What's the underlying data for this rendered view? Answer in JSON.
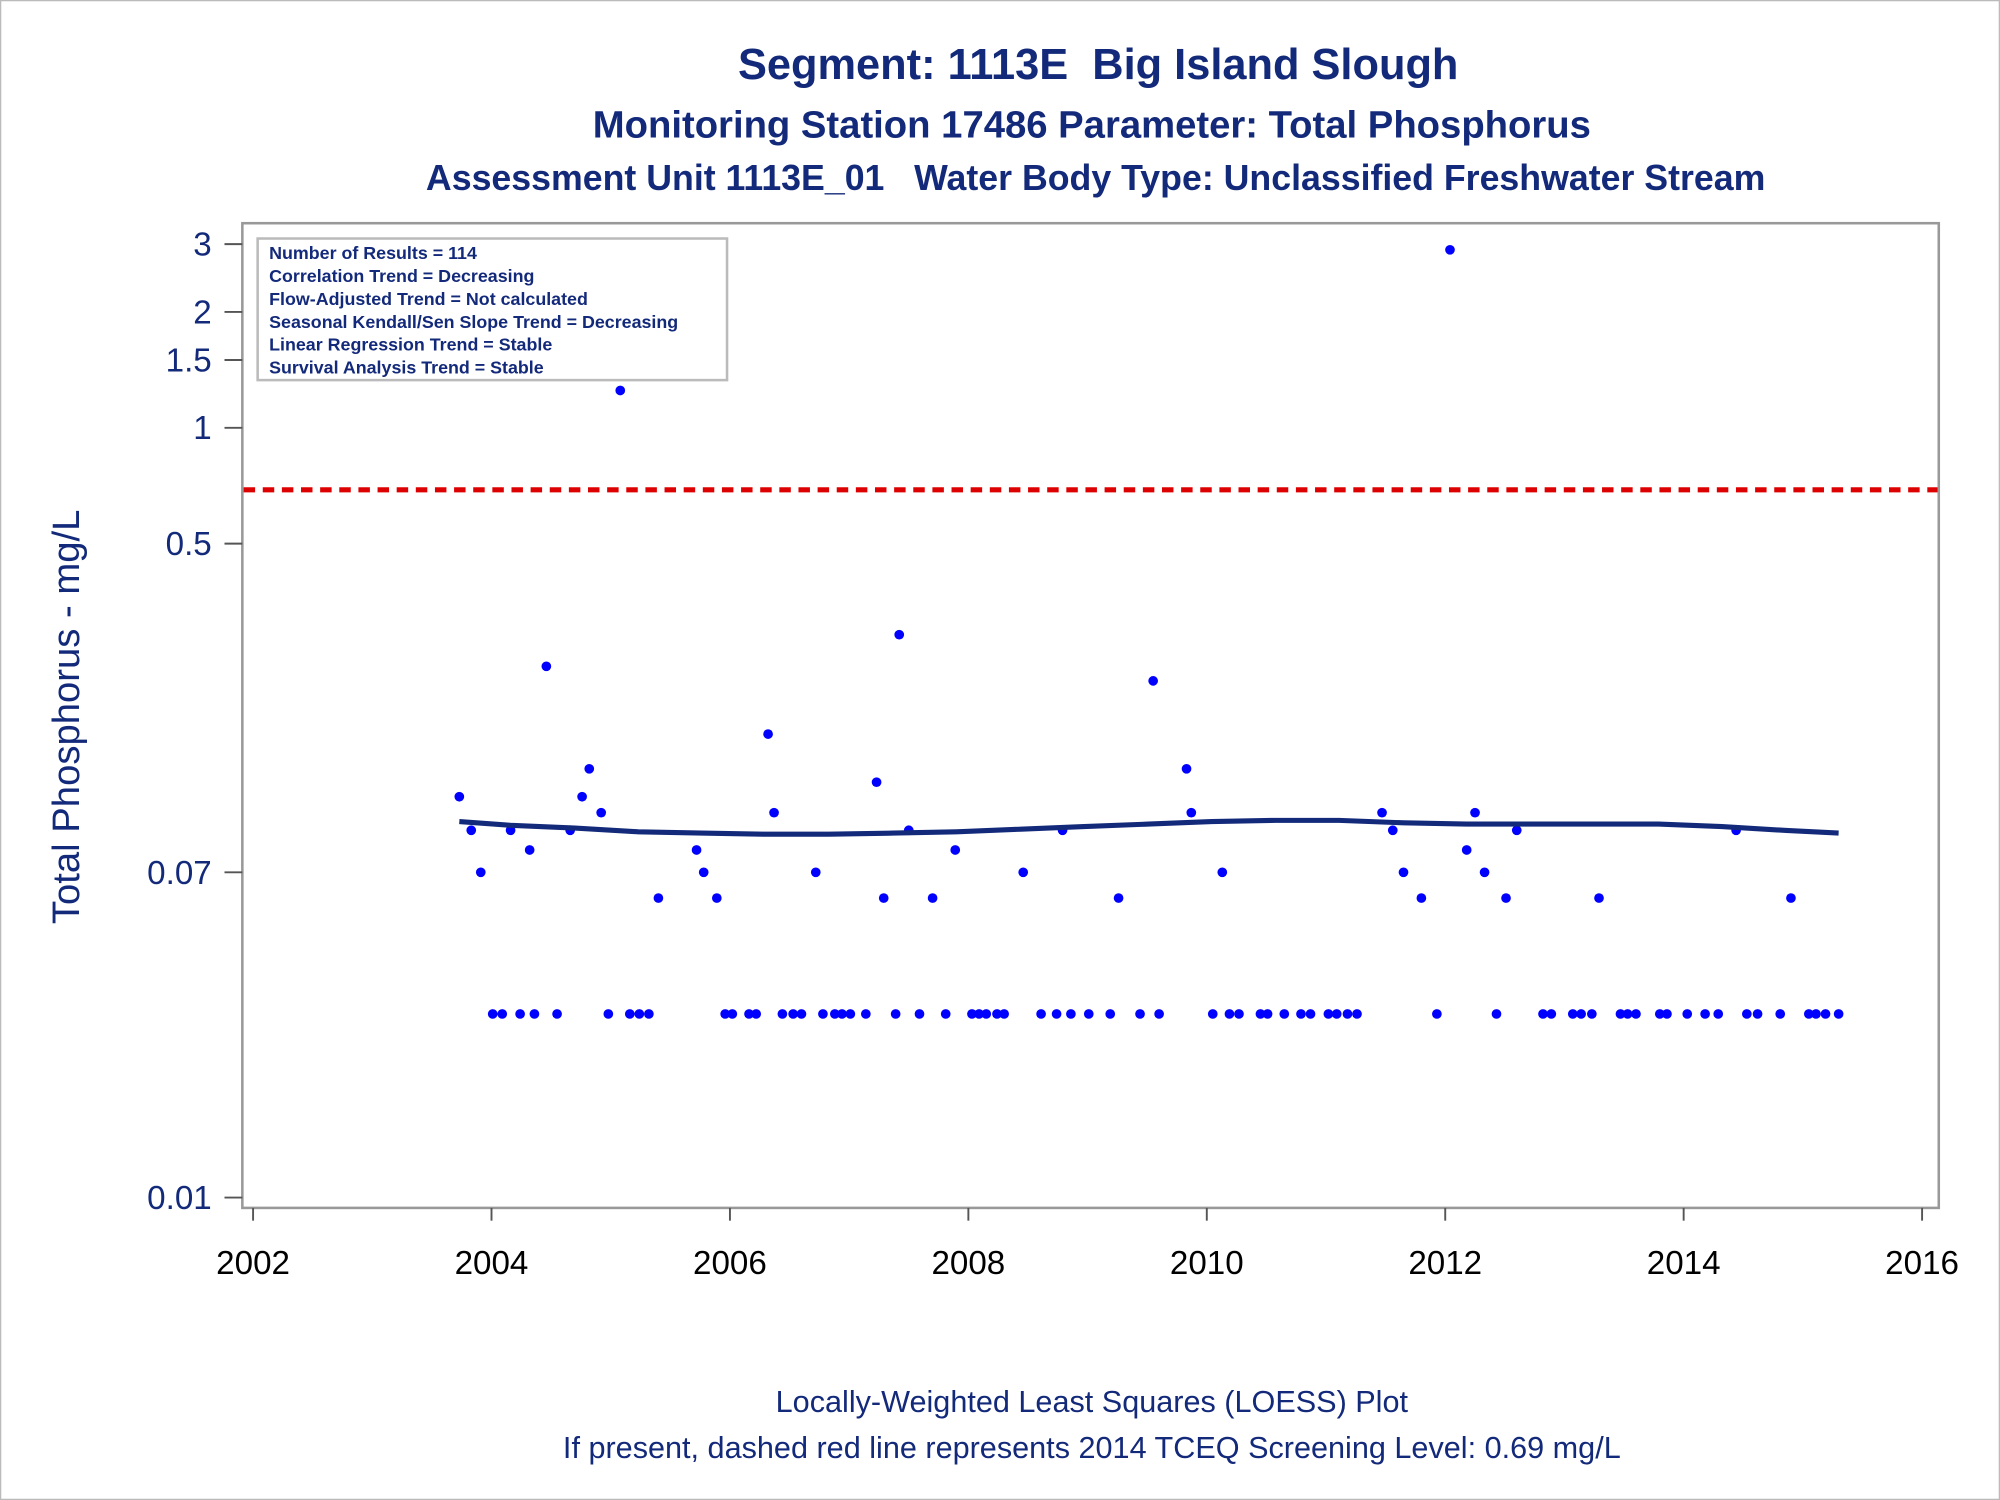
{
  "chart_data": {
    "type": "scatter",
    "title": "Segment: 1113E  Big Island Slough",
    "subtitle": "Monitoring Station 17486 Parameter: Total Phosphorus",
    "subtitle2": "Assessment Unit 1113E_01   Water Body Type: Unclassified Freshwater Stream",
    "y_label": "Total Phosphorus - mg/L",
    "footnotes": [
      "Locally-Weighted Least Squares (LOESS) Plot",
      "If present, dashed red line represents 2014 TCEQ Screening Level: 0.69 mg/L"
    ],
    "info_box": [
      "Number of Results = 114",
      "Correlation Trend = Decreasing",
      "Flow-Adjusted Trend = Not calculated",
      "Seasonal Kendall/Sen Slope Trend = Decreasing",
      "Linear Regression Trend = Stable",
      "Survival Analysis Trend = Stable"
    ],
    "y_log": true,
    "xlim": [
      2001.91,
      2016.14
    ],
    "xticks": [
      2002,
      2004,
      2006,
      2008,
      2010,
      2012,
      2014,
      2016
    ],
    "ylim": [
      0.0094,
      3.4
    ],
    "yticks": [
      0.01,
      0.07,
      0.5,
      1,
      1.5,
      2,
      3
    ],
    "reference_line": {
      "value": 0.69,
      "color": "#dd0000"
    },
    "series": [
      {
        "type": "scatter",
        "color": "#0000ff",
        "x": [
          2003.73,
          2003.83,
          2003.91,
          2004.16,
          2004.32,
          2004.46,
          2004.66,
          2004.76,
          2004.82,
          2004.92,
          2005.08,
          2005.4,
          2005.72,
          2005.78,
          2005.89,
          2006.32,
          2006.37,
          2006.72,
          2007.23,
          2007.29,
          2007.42,
          2007.5,
          2007.7,
          2007.89,
          2008.46,
          2008.79,
          2009.26,
          2009.55,
          2009.83,
          2009.87,
          2010.13,
          2011.47,
          2011.56,
          2011.65,
          2011.8,
          2012.04,
          2012.18,
          2012.25,
          2012.33,
          2012.51,
          2012.6,
          2013.29,
          2014.44,
          2014.9,
          2004.01,
          2004.09,
          2004.24,
          2004.36,
          2004.55,
          2004.98,
          2005.16,
          2005.24,
          2005.32,
          2005.96,
          2006.02,
          2006.16,
          2006.22,
          2006.44,
          2006.53,
          2006.6,
          2006.78,
          2006.88,
          2006.94,
          2007.01,
          2007.14,
          2007.39,
          2007.59,
          2007.81,
          2008.03,
          2008.09,
          2008.15,
          2008.24,
          2008.3,
          2008.61,
          2008.74,
          2008.86,
          2009.01,
          2009.19,
          2009.44,
          2009.6,
          2010.05,
          2010.19,
          2010.27,
          2010.45,
          2010.51,
          2010.65,
          2010.79,
          2010.87,
          2011.02,
          2011.09,
          2011.18,
          2011.26,
          2011.93,
          2012.43,
          2012.82,
          2012.89,
          2013.07,
          2013.14,
          2013.23,
          2013.47,
          2013.53,
          2013.6,
          2013.8,
          2013.86,
          2014.03,
          2014.18,
          2014.29,
          2014.53,
          2014.62,
          2014.81,
          2015.05,
          2015.11,
          2015.19,
          2015.3
        ],
        "values": [
          0.11,
          0.09,
          0.07,
          0.09,
          0.08,
          0.24,
          0.09,
          0.11,
          0.13,
          0.1,
          1.25,
          0.06,
          0.08,
          0.07,
          0.06,
          0.16,
          0.1,
          0.07,
          0.12,
          0.06,
          0.29,
          0.09,
          0.06,
          0.08,
          0.07,
          0.09,
          0.06,
          0.22,
          0.13,
          0.1,
          0.07,
          0.1,
          0.09,
          0.07,
          0.06,
          2.9,
          0.08,
          0.1,
          0.07,
          0.06,
          0.09,
          0.06,
          0.09,
          0.06,
          0.03,
          0.03,
          0.03,
          0.03,
          0.03,
          0.03,
          0.03,
          0.03,
          0.03,
          0.03,
          0.03,
          0.03,
          0.03,
          0.03,
          0.03,
          0.03,
          0.03,
          0.03,
          0.03,
          0.03,
          0.03,
          0.03,
          0.03,
          0.03,
          0.03,
          0.03,
          0.03,
          0.03,
          0.03,
          0.03,
          0.03,
          0.03,
          0.03,
          0.03,
          0.03,
          0.03,
          0.03,
          0.03,
          0.03,
          0.03,
          0.03,
          0.03,
          0.03,
          0.03,
          0.03,
          0.03,
          0.03,
          0.03,
          0.03,
          0.03,
          0.03,
          0.03,
          0.03,
          0.03,
          0.03,
          0.03,
          0.03,
          0.03,
          0.03,
          0.03,
          0.03,
          0.03,
          0.03,
          0.03,
          0.03,
          0.03,
          0.03,
          0.03,
          0.03,
          0.03
        ]
      },
      {
        "type": "line",
        "color": "#13297a",
        "x": [
          2003.73,
          2004.16,
          2004.7,
          2005.23,
          2005.76,
          2006.3,
          2006.83,
          2007.37,
          2007.9,
          2008.44,
          2008.97,
          2009.51,
          2010.04,
          2010.58,
          2011.11,
          2011.65,
          2012.18,
          2012.72,
          2013.25,
          2013.79,
          2014.32,
          2014.86,
          2015.3
        ],
        "values": [
          0.0948,
          0.0927,
          0.0912,
          0.0892,
          0.0885,
          0.0879,
          0.0879,
          0.0885,
          0.0892,
          0.0906,
          0.092,
          0.0934,
          0.0948,
          0.0955,
          0.0955,
          0.0941,
          0.0934,
          0.0934,
          0.0934,
          0.0934,
          0.092,
          0.0899,
          0.0885
        ]
      }
    ]
  }
}
